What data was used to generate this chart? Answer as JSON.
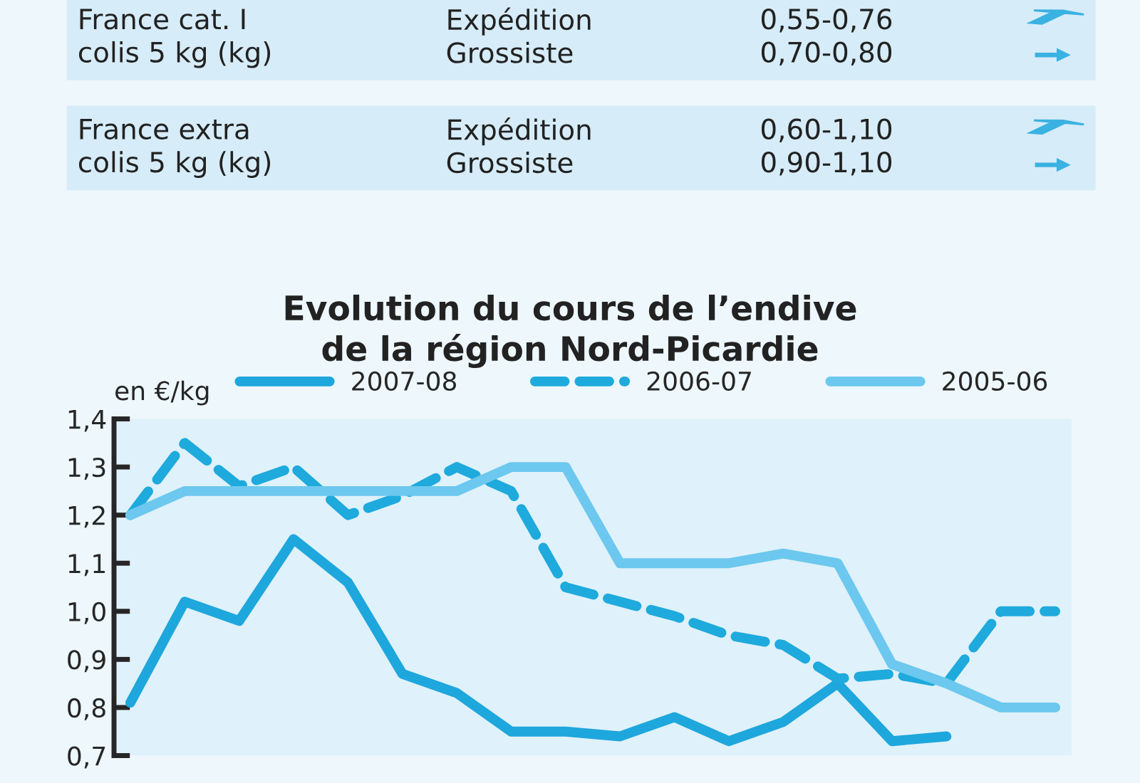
{
  "chart_data": [
    {
      "type": "other",
      "annotations": [
        "France cat. I\ncolis 5 kg (kg)",
        "Expédition\nGrossiste",
        "0,55-0,76\n0,70-0,80",
        "France extra\ncolis 5 kg (kg)",
        "Expédition\nGrossiste",
        "0,60-1,10\n0,90-1,10"
      ]
    },
    {
      "type": "line",
      "title": "Evolution du cours de l’endive\nde la région Nord-Picardie",
      "ylabel": "en €/kg",
      "categories": [
        null,
        null,
        null,
        null,
        null,
        null,
        null,
        null,
        null,
        null,
        null,
        null,
        null,
        null,
        null,
        null,
        null,
        null
      ],
      "series": [
        {
          "name": "2007-08",
          "color": "#1ea7dc",
          "line_style": "solid",
          "values": [
            0.81,
            1.02,
            0.98,
            1.15,
            1.06,
            0.87,
            0.83,
            0.75,
            0.75,
            0.74,
            0.78,
            0.73,
            0.77,
            0.85,
            0.73,
            0.74,
            null,
            null
          ]
        },
        {
          "name": "2006-07",
          "color": "#1eaadc",
          "line_style": "dashed",
          "values": [
            1.2,
            1.35,
            1.26,
            1.3,
            1.2,
            1.24,
            1.3,
            1.25,
            1.05,
            1.02,
            0.99,
            0.95,
            0.93,
            0.86,
            0.87,
            0.85,
            1.0,
            1.0
          ]
        },
        {
          "name": "2005-06",
          "color": "#6cc8ee",
          "line_style": "solid",
          "values": [
            1.2,
            1.25,
            1.25,
            1.25,
            1.25,
            1.25,
            1.25,
            1.3,
            1.3,
            1.1,
            1.1,
            1.1,
            1.12,
            1.1,
            0.89,
            0.85,
            0.8,
            0.8
          ]
        }
      ],
      "ylim": [
        0.7,
        1.4
      ],
      "yticks": [
        {
          "value": 0.7,
          "label": "0,7"
        },
        {
          "value": 0.8,
          "label": "0,8"
        },
        {
          "value": 0.9,
          "label": "0,9"
        },
        {
          "value": 1.0,
          "label": "1,0"
        },
        {
          "value": 1.1,
          "label": "1,1"
        },
        {
          "value": 1.2,
          "label": "1,2"
        },
        {
          "value": 1.3,
          "label": "1,3"
        },
        {
          "value": 1.4,
          "label": "1,4"
        }
      ],
      "tick_labels": "y",
      "grid": false,
      "legend": "top",
      "marker": "none"
    }
  ]
}
